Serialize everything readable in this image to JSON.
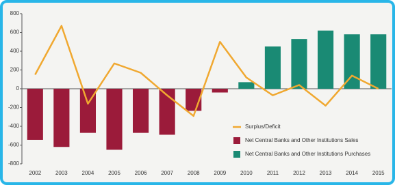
{
  "chart_data": {
    "type": "combo",
    "categories": [
      "2002",
      "2003",
      "2004",
      "2005",
      "2006",
      "2007",
      "2008",
      "2009",
      "2010",
      "2011",
      "2012",
      "2013",
      "2014",
      "2015"
    ],
    "series": [
      {
        "name": "Surplus/Deficit",
        "type": "line",
        "color": "#f0a830",
        "values": [
          150,
          670,
          -160,
          270,
          170,
          -70,
          -290,
          500,
          120,
          -70,
          40,
          -180,
          140,
          0
        ]
      },
      {
        "name": "Net Central Banks and Other Institutions Sales",
        "type": "bar",
        "color": "#9b1b3a",
        "values": [
          -545,
          -620,
          -470,
          -650,
          -470,
          -490,
          -235,
          -40,
          null,
          null,
          null,
          null,
          null,
          null
        ]
      },
      {
        "name": "Net Central Banks and Other Institutions Purchases",
        "type": "bar",
        "color": "#1a8a74",
        "values": [
          null,
          null,
          null,
          null,
          null,
          null,
          null,
          null,
          70,
          450,
          530,
          620,
          580,
          580
        ]
      }
    ],
    "ylim": [
      -800,
      800
    ],
    "yticks": [
      -800,
      -600,
      -400,
      -200,
      0,
      200,
      400,
      600,
      800
    ]
  }
}
